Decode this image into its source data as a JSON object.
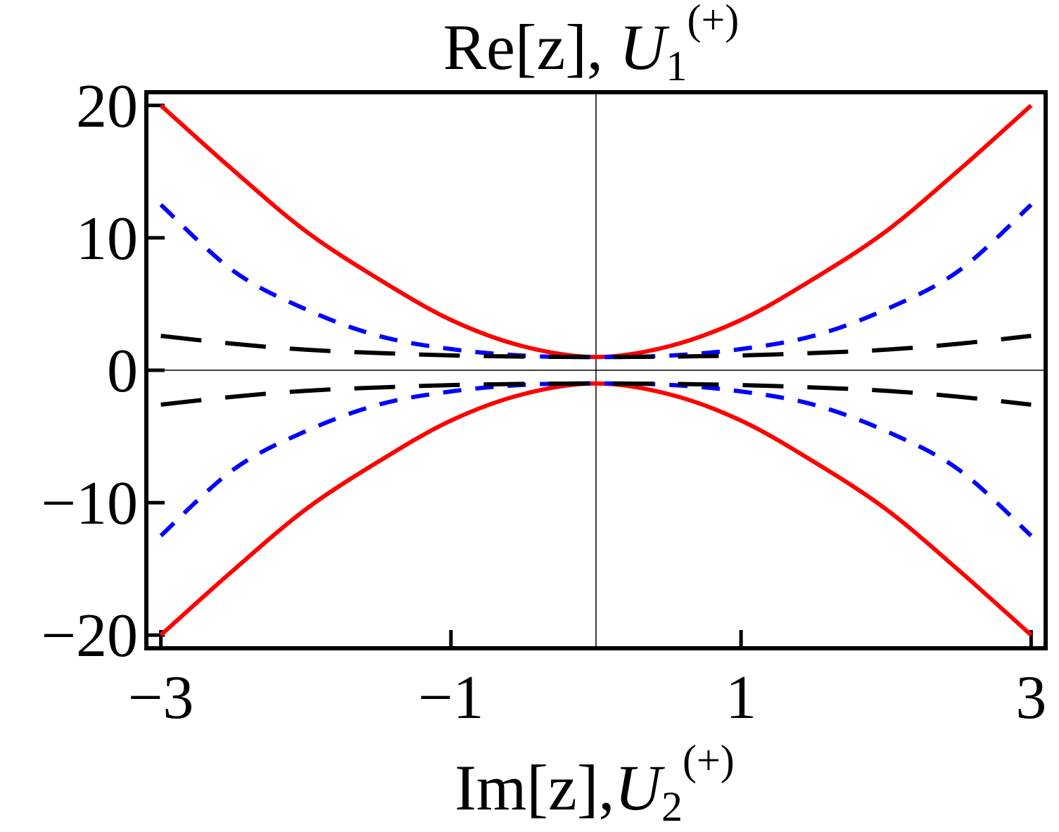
{
  "chart_data": {
    "type": "line",
    "title": {
      "main": "Re[z], ",
      "var": "U",
      "sub": "1",
      "sup": "(+)"
    },
    "xlabel": {
      "main": "Im[z],",
      "var": "U",
      "sub": "2",
      "sup": "(+)"
    },
    "xlim": [
      -3.1,
      3.1
    ],
    "ylim": [
      -21,
      21
    ],
    "x_ticks": [
      -3,
      -1,
      1,
      3
    ],
    "x_tick_labels": [
      "−3",
      "−1",
      "1",
      "3"
    ],
    "y_ticks": [
      -20,
      -10,
      0,
      10,
      20
    ],
    "y_tick_labels": [
      "−20",
      "−10",
      "0",
      "10",
      "20"
    ],
    "grid": false,
    "zero_axes": true,
    "series": [
      {
        "color": "#ff0000",
        "dash": "solid",
        "x": [
          -3,
          -2.5,
          -2,
          -1.5,
          -1,
          -0.5,
          0,
          0.5,
          1,
          1.5,
          2,
          2.5,
          3
        ],
        "upper": [
          20,
          15.1,
          10.5,
          6.9,
          3.8,
          1.8,
          1.0,
          1.8,
          3.8,
          6.9,
          10.5,
          15.1,
          20
        ],
        "lower": [
          -20,
          -15.1,
          -10.5,
          -6.9,
          -3.8,
          -1.8,
          -1.0,
          -1.8,
          -3.8,
          -6.9,
          -10.5,
          -15.1,
          -20
        ]
      },
      {
        "color": "#0000ff",
        "dash": "short",
        "x": [
          -3,
          -2.5,
          -2,
          -1.5,
          -1,
          -0.5,
          0,
          0.5,
          1,
          1.5,
          2,
          2.5,
          3
        ],
        "upper": [
          12.5,
          7.5,
          4.6,
          2.6,
          1.6,
          1.1,
          1.0,
          1.1,
          1.6,
          2.6,
          4.6,
          7.5,
          12.5
        ],
        "lower": [
          -12.5,
          -7.5,
          -4.6,
          -2.6,
          -1.6,
          -1.1,
          -1.0,
          -1.1,
          -1.6,
          -2.6,
          -4.6,
          -7.5,
          -12.5
        ]
      },
      {
        "color": "#000000",
        "dash": "long",
        "x": [
          -3,
          -2.5,
          -2,
          -1.5,
          -1,
          -0.5,
          0,
          0.5,
          1,
          1.5,
          2,
          2.5,
          3
        ],
        "upper": [
          2.6,
          2.0,
          1.55,
          1.3,
          1.12,
          1.03,
          1.0,
          1.03,
          1.12,
          1.3,
          1.55,
          2.0,
          2.6
        ],
        "lower": [
          -2.6,
          -2.0,
          -1.55,
          -1.3,
          -1.12,
          -1.03,
          -1.0,
          -1.03,
          -1.12,
          -1.3,
          -1.55,
          -2.0,
          -2.6
        ]
      }
    ]
  }
}
